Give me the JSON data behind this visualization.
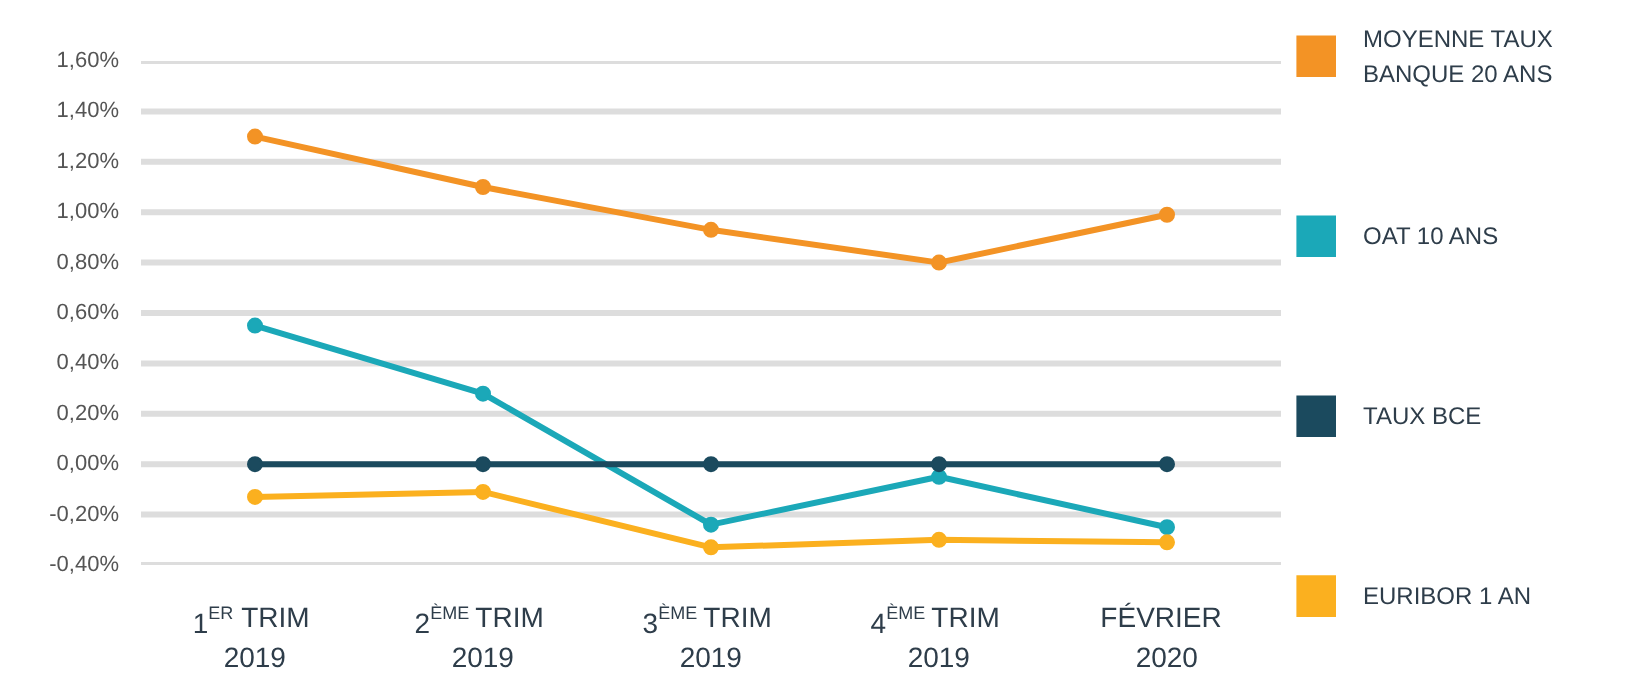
{
  "chart_data": {
    "type": "line",
    "categories": [
      "1$^{ER}$ TRIM\n2019",
      "2$^{ÈME}$ TRIM\n2019",
      "3$^{ÈME}$ TRIM\n2019",
      "4$^{ÈME}$ TRIM\n2019",
      "FÉVRIER\n2020"
    ],
    "series": [
      {
        "name": "MOYENNE TAUX\nBANQUE 20 ANS",
        "color": "#f39325",
        "values": [
          1.3,
          1.1,
          0.93,
          0.8,
          0.99
        ]
      },
      {
        "name": "OAT 10 ANS",
        "color": "#1ba8b8",
        "values": [
          0.55,
          0.28,
          -0.24,
          -0.05,
          -0.25
        ]
      },
      {
        "name": "TAUX BCE",
        "color": "#1b4a5e",
        "values": [
          0.0,
          0.0,
          0.0,
          0.0,
          0.0
        ]
      },
      {
        "name": "EURIBOR 1 AN",
        "color": "#fbb01f",
        "values": [
          -0.13,
          -0.11,
          -0.33,
          -0.3,
          -0.31
        ]
      }
    ],
    "ylim": [
      -0.4,
      1.6
    ],
    "yticks": [
      {
        "value": -0.4,
        "label": "-0,40%"
      },
      {
        "value": -0.2,
        "label": "-0,20%"
      },
      {
        "value": 0,
        "label": "0,00%"
      },
      {
        "value": 0.2,
        "label": "0,20%"
      },
      {
        "value": 0.4,
        "label": "0,40%"
      },
      {
        "value": 0.6,
        "label": "0,60%"
      },
      {
        "value": 0.8,
        "label": "0,80%"
      },
      {
        "value": 1.0,
        "label": "1,00%"
      },
      {
        "value": 1.2,
        "label": "1,20%"
      },
      {
        "value": 1.4,
        "label": "1,40%"
      },
      {
        "value": 1.6,
        "label": "1,60%"
      }
    ],
    "grid": "y",
    "legend": "right",
    "marker": "circle",
    "line_style": "solid"
  }
}
